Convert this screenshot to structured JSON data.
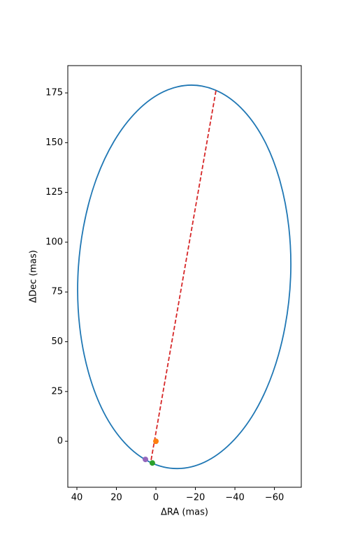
{
  "chart_data": {
    "type": "line",
    "xlabel": "ΔRA (mas)",
    "ylabel": "ΔDec (mas)",
    "xlim": [
      44.6,
      -73.6
    ],
    "ylim": [
      -23.1,
      188.7
    ],
    "xticks": [
      40,
      20,
      0,
      {
        "value": -20,
        "label": "−20"
      },
      {
        "value": -40,
        "label": "−40"
      },
      {
        "value": -60,
        "label": "−60"
      }
    ],
    "yticks": [
      0,
      25,
      50,
      75,
      100,
      125,
      150,
      175
    ],
    "series": [
      {
        "color": "#1f77b4",
        "style": "smooth",
        "x": [
          -18.0,
          -31.85,
          -44.5,
          -55.1,
          -62.8,
          -67.3,
          -68.2,
          -65.4,
          -59.2,
          -49.9,
          -38.1,
          -24.8,
          -10.7,
          3.15,
          15.8,
          26.4,
          34.1,
          38.6,
          39.5,
          36.7,
          30.5,
          21.2,
          9.4,
          -3.9
        ],
        "y": [
          178.9,
          175.6,
          166.0,
          150.7,
          130.8,
          107.5,
          82.6,
          57.7,
          34.5,
          14.5,
          -0.8,
          -10.4,
          -13.7,
          -10.4,
          -0.8,
          14.5,
          34.5,
          57.7,
          82.6,
          107.5,
          130.8,
          150.7,
          166.0,
          175.6
        ]
      },
      {
        "color": "#d62728",
        "style": "dashed",
        "x": [
          -30.4,
          2.5
        ],
        "y": [
          176.1,
          -9.8
        ]
      },
      {
        "color": "#ff7f0e",
        "style": "point",
        "x": [
          0
        ],
        "y": [
          0
        ]
      },
      {
        "color": "#2ca02c",
        "style": "point",
        "x": [
          1.8
        ],
        "y": [
          -10.9
        ]
      },
      {
        "color": "#9467bd",
        "style": "point",
        "x": [
          5.3
        ],
        "y": [
          -9.1
        ]
      }
    ]
  }
}
